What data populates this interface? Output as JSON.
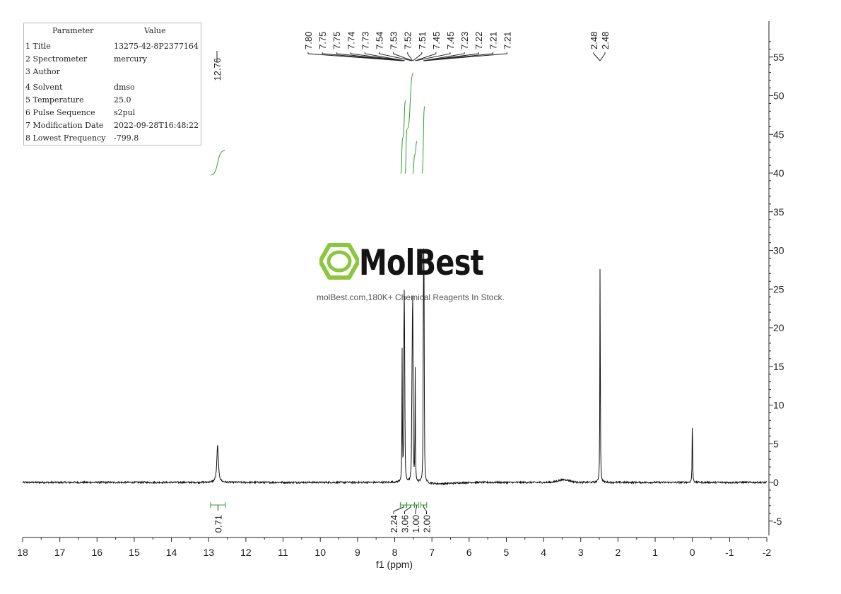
{
  "parameters": {
    "header": [
      "Parameter",
      "Value"
    ],
    "rows": [
      {
        "k": "1 Title",
        "v": "13275-42-8P2377164"
      },
      {
        "k": "2 Spectrometer",
        "v": "mercury"
      },
      {
        "k": "3 Author",
        "v": ""
      },
      {
        "k": "4 Solvent",
        "v": "dmso"
      },
      {
        "k": "5 Temperature",
        "v": "25.0"
      },
      {
        "k": "6 Pulse Sequence",
        "v": "s2pul"
      },
      {
        "k": "7 Modification Date",
        "v": "2022-09-28T16:48:22"
      },
      {
        "k": "8 Lowest Frequency",
        "v": "-799.8"
      }
    ]
  },
  "watermark": {
    "brand": "MolBest",
    "tagline": "molBest.com,180K+ Chemical Reagents In Stock."
  },
  "colors": {
    "spectrum": "#111111",
    "integral": "#2ca02c",
    "logo": "#8cc63f"
  },
  "chart_data": {
    "type": "line",
    "xlabel": "f1 (ppm)",
    "ylabel": "",
    "xlim": [
      18,
      -2
    ],
    "ylim": [
      -7,
      60
    ],
    "x_ticks": [
      18,
      17,
      16,
      15,
      14,
      13,
      12,
      11,
      10,
      9,
      8,
      7,
      6,
      5,
      4,
      3,
      2,
      1,
      0,
      -1,
      -2
    ],
    "y_ticks": [
      55,
      50,
      45,
      40,
      35,
      30,
      25,
      20,
      15,
      10,
      5,
      0,
      -5
    ],
    "peaks": [
      {
        "ppm": 12.76,
        "height": 4.8
      },
      {
        "ppm": 7.8,
        "height": 16.8
      },
      {
        "ppm": 7.75,
        "height": 18.9
      },
      {
        "ppm": 7.74,
        "height": 17.5
      },
      {
        "ppm": 7.73,
        "height": 9.0
      },
      {
        "ppm": 7.54,
        "height": 8.2
      },
      {
        "ppm": 7.53,
        "height": 8.3
      },
      {
        "ppm": 7.52,
        "height": 20.3
      },
      {
        "ppm": 7.51,
        "height": 14.0
      },
      {
        "ppm": 7.45,
        "height": 14.7
      },
      {
        "ppm": 7.23,
        "height": 16.5
      },
      {
        "ppm": 7.22,
        "height": 20.4
      },
      {
        "ppm": 7.21,
        "height": 19.0
      },
      {
        "ppm": 2.48,
        "height": 31.5
      },
      {
        "ppm": 0.0,
        "height": 9.5
      }
    ],
    "peak_labels_group1": [
      "12.76"
    ],
    "peak_labels_group2": [
      "7.80",
      "7.75",
      "7.75",
      "7.74",
      "7.73",
      "7.54",
      "7.53",
      "7.52",
      "7.51",
      "7.45",
      "7.45",
      "7.23",
      "7.22",
      "7.21",
      "7.21"
    ],
    "peak_labels_group3": [
      "2.48",
      "2.48"
    ],
    "integrals": [
      {
        "label": "0.71",
        "from": 12.95,
        "to": 12.55
      },
      {
        "label": "2.24",
        "from": 7.85,
        "to": 7.68
      },
      {
        "label": "3.06",
        "from": 7.68,
        "to": 7.47
      },
      {
        "label": "1.00",
        "from": 7.47,
        "to": 7.36
      },
      {
        "label": "2.00",
        "from": 7.3,
        "to": 7.14
      }
    ]
  }
}
